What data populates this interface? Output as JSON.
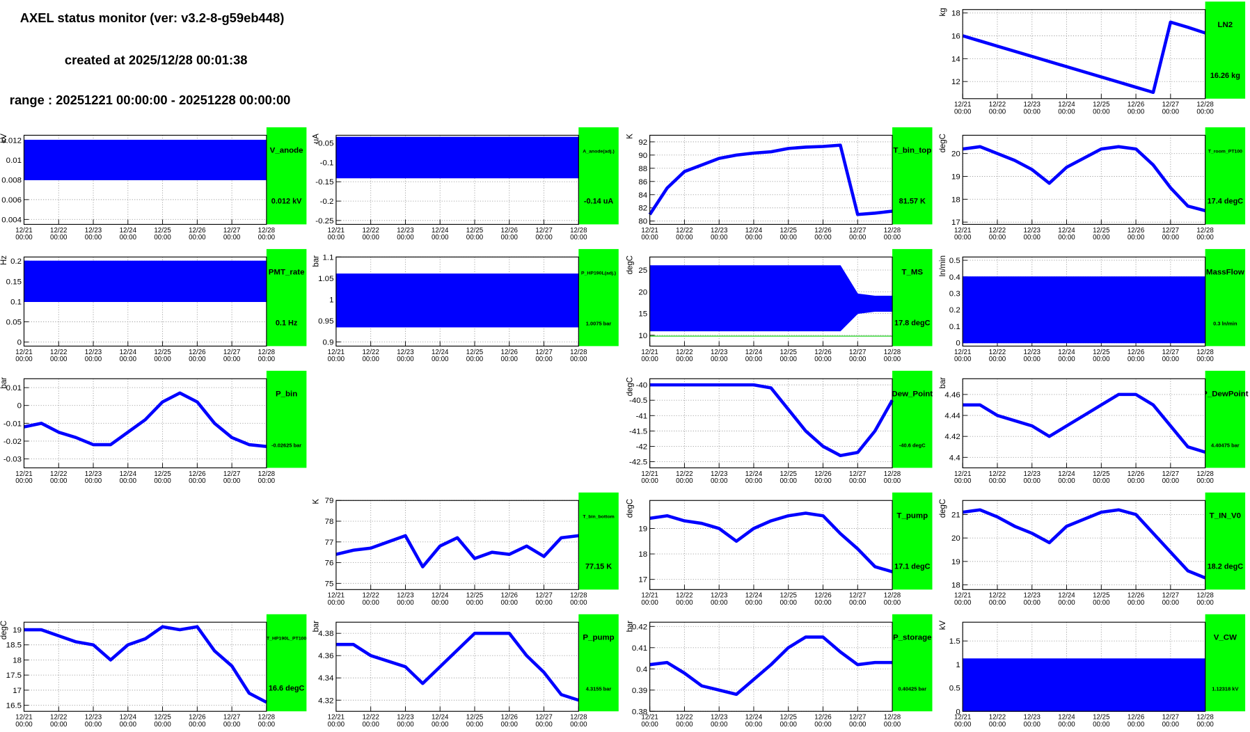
{
  "header": {
    "title": "AXEL status monitor (ver: v3.2-8-g59eb448)",
    "created": "created at 2025/12/28 00:01:38",
    "range": "range : 20251221 00:00:00 - 20251228 00:00:00"
  },
  "x_axis": {
    "dates": [
      "12/21",
      "12/22",
      "12/23",
      "12/24",
      "12/25",
      "12/26",
      "12/27",
      "12/28"
    ],
    "time": "00:00"
  },
  "chart_data": [
    {
      "type": "line",
      "title": "LN2",
      "current": "16.26 kg",
      "unit": "kg",
      "cell": [
        3,
        0
      ],
      "color": "#0000ff",
      "ylim": [
        10.5,
        18.3
      ],
      "yticks": [
        12,
        14,
        16,
        18
      ],
      "values": [
        16,
        15.55,
        15.1,
        14.65,
        14.2,
        13.75,
        13.3,
        12.85,
        12.4,
        11.95,
        11.5,
        11.05,
        17.2,
        16.75,
        16.25
      ]
    },
    {
      "type": "band",
      "title": "V_anode",
      "current": "0.012 kV",
      "unit": "kV",
      "cell": [
        0,
        1
      ],
      "color": "#0000ff",
      "ylim": [
        0.0035,
        0.0125
      ],
      "yticks": [
        0.004,
        0.006,
        0.008,
        0.01,
        0.012
      ],
      "lower": [
        0.008,
        0.008
      ],
      "upper": [
        0.012,
        0.012
      ]
    },
    {
      "type": "band",
      "title": "A_anode(adj.)",
      "current": "-0.14 uA",
      "unit": "uA",
      "cell": [
        1,
        1
      ],
      "color": "#0000ff",
      "ylim": [
        -0.26,
        -0.03
      ],
      "yticks": [
        -0.25,
        -0.2,
        -0.15,
        -0.1,
        -0.05
      ],
      "lower": [
        -0.14,
        -0.14
      ],
      "upper": [
        -0.035,
        -0.035
      ]
    },
    {
      "type": "line",
      "title": "T_bin_top",
      "current": "81.57 K",
      "unit": "K",
      "cell": [
        2,
        1
      ],
      "color": "#0000ff",
      "ylim": [
        79.5,
        93
      ],
      "yticks": [
        80,
        82,
        84,
        86,
        88,
        90,
        92
      ],
      "values": [
        81,
        85,
        87.5,
        88.5,
        89.5,
        90,
        90.3,
        90.5,
        91,
        91.2,
        91.3,
        91.5,
        81,
        81.2,
        81.5
      ]
    },
    {
      "type": "line",
      "title": "T_room_PT100",
      "current": "17.4 degC",
      "unit": "degC",
      "cell": [
        3,
        1
      ],
      "color": "#0000ff",
      "ylim": [
        16.9,
        20.8
      ],
      "yticks": [
        17,
        18,
        19,
        20
      ],
      "values": [
        20.2,
        20.3,
        20.0,
        19.7,
        19.3,
        18.7,
        19.4,
        19.8,
        20.2,
        20.3,
        20.2,
        19.5,
        18.5,
        17.7,
        17.5
      ]
    },
    {
      "type": "band",
      "title": "PMT_rate",
      "current": "0.1 Hz",
      "unit": "Hz",
      "cell": [
        0,
        2
      ],
      "color": "#0000ff",
      "ylim": [
        -0.01,
        0.21
      ],
      "yticks": [
        0,
        0.05,
        0.1,
        0.15,
        0.2
      ],
      "lower": [
        0.1,
        0.1
      ],
      "upper": [
        0.2,
        0.2
      ]
    },
    {
      "type": "band",
      "title": "P_HP190L(adj.)",
      "current": "1.0075 bar",
      "unit": "bar",
      "cell": [
        1,
        2
      ],
      "color": "#0000ff",
      "ylim": [
        0.89,
        1.1
      ],
      "yticks": [
        0.9,
        0.95,
        1,
        1.05,
        1.1
      ],
      "lower": [
        0.935,
        0.935
      ],
      "upper": [
        1.06,
        1.06
      ]
    },
    {
      "type": "band",
      "title": "T_MS",
      "current": "17.8 degC",
      "unit": "degC",
      "cell": [
        2,
        2
      ],
      "color": "#0000ff",
      "ylim": [
        7.5,
        28
      ],
      "yticks": [
        10,
        15,
        20,
        25
      ],
      "lower": [
        11,
        11,
        11,
        11,
        11,
        11,
        11,
        11,
        11,
        11,
        11,
        11,
        15,
        15.5,
        15.5
      ],
      "upper": [
        26,
        26,
        26,
        26,
        26,
        26,
        26,
        26,
        26,
        26,
        26,
        26,
        19.5,
        19,
        19
      ],
      "threshold": 9.8,
      "threshold_color": "#00cc00"
    },
    {
      "type": "band",
      "title": "MassFlow",
      "current": "0.3 ln/min",
      "unit": "ln/min",
      "cell": [
        3,
        2
      ],
      "color": "#0000ff",
      "ylim": [
        -0.02,
        0.52
      ],
      "yticks": [
        0,
        0.1,
        0.2,
        0.3,
        0.4,
        0.5
      ],
      "lower": [
        0,
        0
      ],
      "upper": [
        0.4,
        0.4
      ]
    },
    {
      "type": "line",
      "title": "P_bin",
      "current": "-0.02625 bar",
      "unit": "bar",
      "cell": [
        0,
        3
      ],
      "color": "#0000ff",
      "ylim": [
        -0.035,
        0.015
      ],
      "yticks": [
        -0.03,
        -0.02,
        -0.01,
        0,
        0.01
      ],
      "values": [
        -0.012,
        -0.01,
        -0.015,
        -0.018,
        -0.022,
        -0.022,
        -0.015,
        -0.008,
        0.002,
        0.007,
        0.002,
        -0.01,
        -0.018,
        -0.022,
        -0.023
      ]
    },
    {
      "type": "line",
      "title": "Dew_Point",
      "current": "-40.6 degC",
      "unit": "degC",
      "cell": [
        2,
        3
      ],
      "color": "#0000ff",
      "ylim": [
        -42.7,
        -39.8
      ],
      "yticks": [
        -42.5,
        -42,
        -41.5,
        -41,
        -40.5,
        -40
      ],
      "values": [
        -40,
        -40,
        -40,
        -40,
        -40,
        -40,
        -40,
        -40.1,
        -40.8,
        -41.5,
        -42,
        -42.3,
        -42.2,
        -41.5,
        -40.5
      ]
    },
    {
      "type": "line",
      "title": "P_DewPoint",
      "current": "4.40475 bar",
      "unit": "bar",
      "cell": [
        3,
        3
      ],
      "color": "#0000ff",
      "ylim": [
        4.39,
        4.475
      ],
      "yticks": [
        4.4,
        4.42,
        4.44,
        4.46
      ],
      "values": [
        4.45,
        4.45,
        4.44,
        4.435,
        4.43,
        4.42,
        4.43,
        4.44,
        4.45,
        4.46,
        4.46,
        4.45,
        4.43,
        4.41,
        4.405
      ]
    },
    {
      "type": "line",
      "title": "T_bin_bottom",
      "current": "77.15 K",
      "unit": "K",
      "cell": [
        1,
        4
      ],
      "color": "#0000ff",
      "ylim": [
        74.7,
        79
      ],
      "yticks": [
        75,
        76,
        77,
        78,
        79
      ],
      "values": [
        76.4,
        76.6,
        76.7,
        77,
        77.3,
        75.8,
        76.8,
        77.2,
        76.2,
        76.5,
        76.4,
        76.8,
        76.3,
        77.2,
        77.3
      ]
    },
    {
      "type": "line",
      "title": "T_pump",
      "current": "17.1 degC",
      "unit": "degC",
      "cell": [
        2,
        4
      ],
      "color": "#0000ff",
      "ylim": [
        16.6,
        20.1
      ],
      "yticks": [
        17,
        18,
        19
      ],
      "values": [
        19.4,
        19.5,
        19.3,
        19.2,
        19.0,
        18.5,
        19.0,
        19.3,
        19.5,
        19.6,
        19.5,
        18.8,
        18.2,
        17.5,
        17.3
      ]
    },
    {
      "type": "line",
      "title": "T_IN_V0",
      "current": "18.2 degC",
      "unit": "degC",
      "cell": [
        3,
        4
      ],
      "color": "#0000ff",
      "ylim": [
        17.8,
        21.6
      ],
      "yticks": [
        18,
        19,
        20,
        21
      ],
      "values": [
        21.1,
        21.2,
        20.9,
        20.5,
        20.2,
        19.8,
        20.5,
        20.8,
        21.1,
        21.2,
        21.0,
        20.2,
        19.4,
        18.6,
        18.3
      ]
    },
    {
      "type": "line",
      "title": "T_HP190L_PT100",
      "current": "16.6 degC",
      "unit": "degC",
      "cell": [
        0,
        5
      ],
      "color": "#0000ff",
      "ylim": [
        16.3,
        19.25
      ],
      "yticks": [
        16.5,
        17,
        17.5,
        18,
        18.5,
        19
      ],
      "values": [
        19,
        19,
        18.8,
        18.6,
        18.5,
        18,
        18.5,
        18.7,
        19.1,
        19.0,
        19.1,
        18.3,
        17.8,
        16.9,
        16.6
      ]
    },
    {
      "type": "line",
      "title": "P_pump",
      "current": "4.3155 bar",
      "unit": "bar",
      "cell": [
        1,
        5
      ],
      "color": "#0000ff",
      "ylim": [
        4.31,
        4.39
      ],
      "yticks": [
        4.32,
        4.34,
        4.36,
        4.38
      ],
      "values": [
        4.37,
        4.37,
        4.36,
        4.355,
        4.35,
        4.335,
        4.35,
        4.365,
        4.38,
        4.38,
        4.38,
        4.36,
        4.345,
        4.325,
        4.32
      ]
    },
    {
      "type": "line",
      "title": "P_storage",
      "current": "0.40425 bar",
      "unit": "bar",
      "cell": [
        2,
        5
      ],
      "color": "#0000ff",
      "ylim": [
        0.38,
        0.422
      ],
      "yticks": [
        0.38,
        0.39,
        0.4,
        0.41,
        0.42
      ],
      "values": [
        0.402,
        0.403,
        0.398,
        0.392,
        0.39,
        0.388,
        0.395,
        0.402,
        0.41,
        0.415,
        0.415,
        0.408,
        0.402,
        0.403,
        0.403
      ]
    },
    {
      "type": "band",
      "title": "V_CW",
      "current": "1.12318 kV",
      "unit": "kV",
      "cell": [
        3,
        5
      ],
      "color": "#0000ff",
      "ylim": [
        0,
        1.9
      ],
      "yticks": [
        0,
        0.5,
        1,
        1.5
      ],
      "lower": [
        0,
        0
      ],
      "upper": [
        1.12,
        1.12
      ]
    }
  ]
}
